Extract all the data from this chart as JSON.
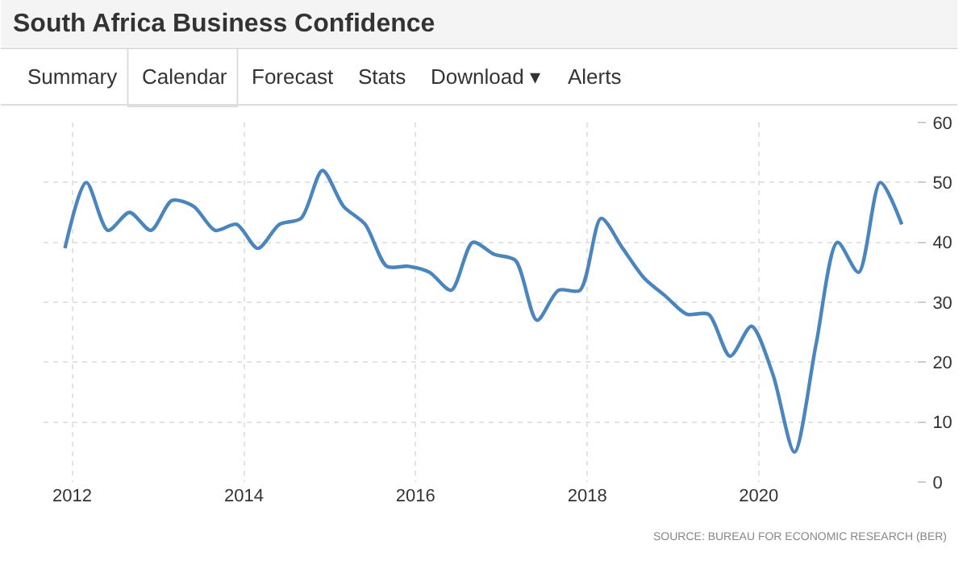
{
  "chart_data": {
    "type": "line",
    "title": "South Africa Business Confidence",
    "annotations": [
      "Summary",
      "Calendar",
      "Forecast",
      "Stats",
      "Download ▾",
      "Alerts",
      "SOURCE: BUREAU FOR ECONOMIC RESEARCH (BER)"
    ],
    "x": [
      "2011-12",
      "2012-03",
      "2012-06",
      "2012-09",
      "2012-12",
      "2013-03",
      "2013-06",
      "2013-09",
      "2013-12",
      "2014-03",
      "2014-06",
      "2014-09",
      "2014-12",
      "2015-03",
      "2015-06",
      "2015-09",
      "2015-12",
      "2016-03",
      "2016-06",
      "2016-09",
      "2016-12",
      "2017-03",
      "2017-06",
      "2017-09",
      "2017-12",
      "2018-03",
      "2018-06",
      "2018-09",
      "2018-12",
      "2019-03",
      "2019-06",
      "2019-09",
      "2019-12",
      "2020-03",
      "2020-06",
      "2020-09",
      "2020-12",
      "2021-03",
      "2021-06",
      "2021-09"
    ],
    "series": [
      {
        "color": "#4a86bd",
        "values": [
          39,
          50,
          42,
          45,
          42,
          47,
          46,
          42,
          43,
          39,
          43,
          44,
          52,
          46,
          43,
          36,
          36,
          35,
          32,
          40,
          38,
          37,
          27,
          32,
          32,
          44,
          39,
          34,
          31,
          28,
          28,
          21,
          26,
          18,
          5,
          23,
          40,
          35,
          50,
          43
        ]
      }
    ],
    "xlim": [
      "2011-09",
      "2021-11"
    ],
    "xticks": [
      {
        "value": "2012-01",
        "label": "2012"
      },
      {
        "value": "2014-01",
        "label": "2014"
      },
      {
        "value": "2016-01",
        "label": "2016"
      },
      {
        "value": "2018-01",
        "label": "2018"
      },
      {
        "value": "2020-01",
        "label": "2020"
      }
    ],
    "ylim": [
      0,
      60
    ],
    "yticks": [
      0,
      10,
      20,
      30,
      40,
      50,
      60
    ],
    "grid": true,
    "marker": "none",
    "line_style": "solid"
  }
}
